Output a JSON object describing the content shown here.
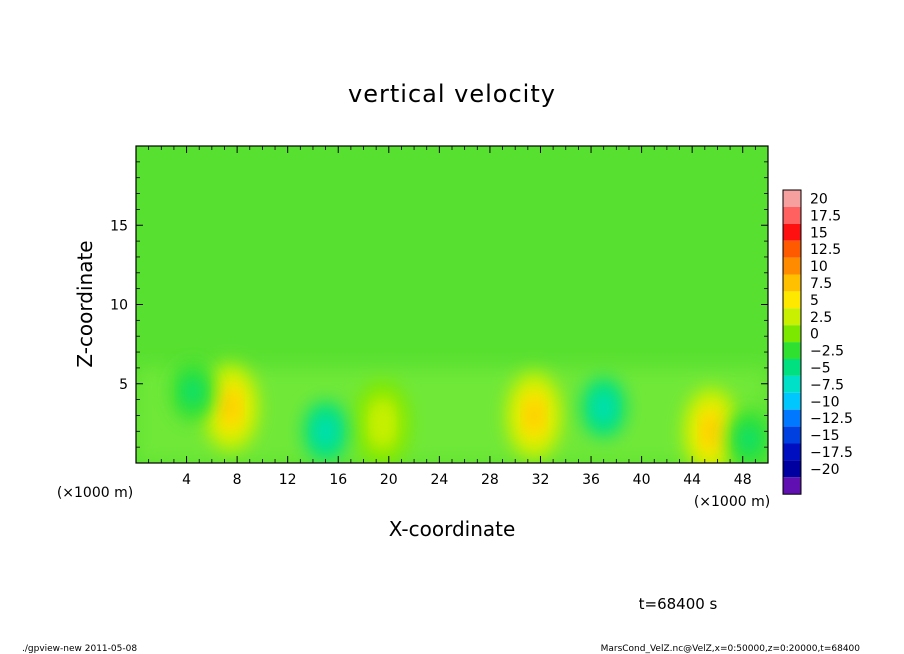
{
  "chart_data": {
    "type": "heatmap",
    "title": "vertical velocity",
    "xlabel": "X-coordinate",
    "ylabel": "Z-coordinate",
    "x_unit_left": "(×1000 m)",
    "x_unit_right": "(×1000 m)",
    "x_ticks": [
      "4",
      "8",
      "12",
      "16",
      "20",
      "24",
      "28",
      "32",
      "36",
      "40",
      "44",
      "48"
    ],
    "y_ticks": [
      "5",
      "10",
      "15"
    ],
    "xlim": [
      0,
      50
    ],
    "ylim": [
      0,
      20
    ],
    "colorbar": {
      "labels": [
        "20",
        "17.5",
        "15",
        "12.5",
        "10",
        "7.5",
        "5",
        "2.5",
        "0",
        "−2.5",
        "−5",
        "−7.5",
        "−10",
        "−12.5",
        "−15",
        "−17.5",
        "−20"
      ],
      "colors": [
        "#f7a0a0",
        "#ff6060",
        "#ff1010",
        "#ff5a00",
        "#ff8c00",
        "#ffc000",
        "#ffe800",
        "#c8f000",
        "#7ce800",
        "#30e030",
        "#00e080",
        "#00e0c8",
        "#00c8ff",
        "#0078ff",
        "#0040e0",
        "#0010c0",
        "#0000a0",
        "#6010b0"
      ]
    },
    "features": [
      {
        "kind": "updraft",
        "x": 7.5,
        "z": 3.5,
        "value": 8
      },
      {
        "kind": "updraft",
        "x": 19.5,
        "z": 2.5,
        "value": 3
      },
      {
        "kind": "updraft",
        "x": 31.5,
        "z": 3.0,
        "value": 8
      },
      {
        "kind": "updraft",
        "x": 45.5,
        "z": 2.0,
        "value": 7
      },
      {
        "kind": "downdraft",
        "x": 4.5,
        "z": 4.5,
        "value": -5
      },
      {
        "kind": "downdraft",
        "x": 15.0,
        "z": 2.0,
        "value": -7.5
      },
      {
        "kind": "downdraft",
        "x": 37.0,
        "z": 3.5,
        "value": -7.5
      },
      {
        "kind": "downdraft",
        "x": 48.5,
        "z": 1.5,
        "value": -5
      }
    ]
  },
  "footer": {
    "time": "t=68400 s",
    "left": "./gpview-new  2011-05-08",
    "right": "MarsCond_VelZ.nc@VelZ,x=0:50000,z=0:20000,t=68400"
  }
}
